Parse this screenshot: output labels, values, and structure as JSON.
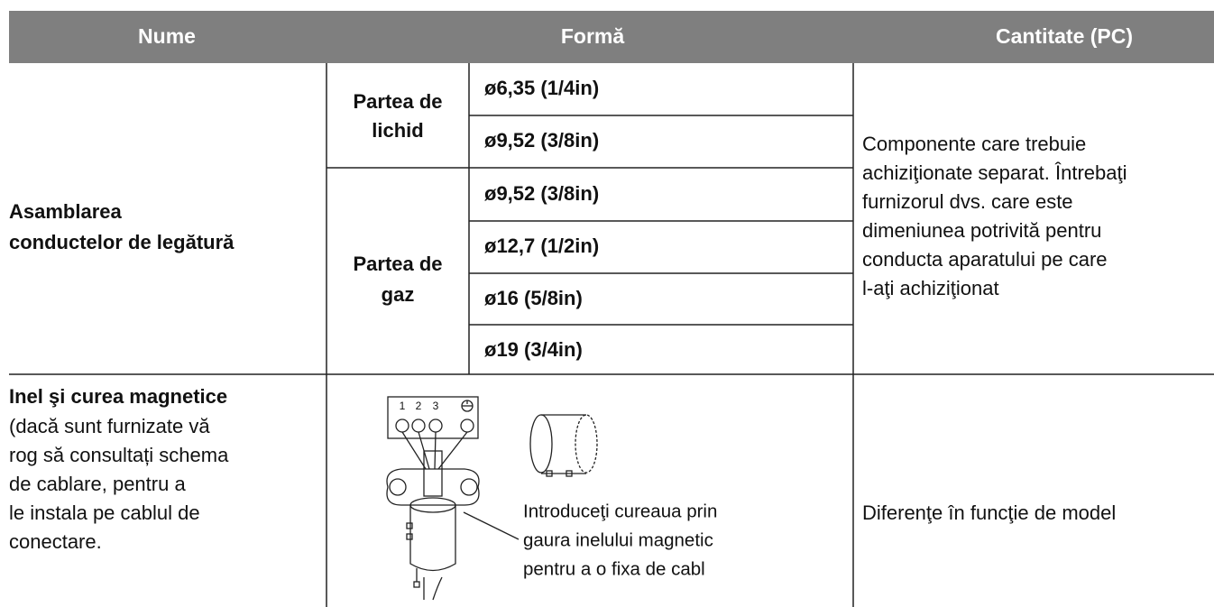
{
  "header": {
    "name": "Nume",
    "shape": "Formă",
    "quantity": "Cantitate (PC)"
  },
  "rows": [
    {
      "name": [
        "Asamblarea",
        "conductelor de legătură"
      ],
      "groups": [
        {
          "label": [
            "Partea de",
            "lichid"
          ],
          "sizes": [
            "ø6,35 (1/4in)",
            "ø9,52 (3/8in)"
          ]
        },
        {
          "label": [
            "Partea de",
            "gaz"
          ],
          "sizes": [
            "ø9,52 (3/8in)",
            "ø12,7 (1/2in)",
            "ø16 (5/8in)",
            "ø19 (3/4in)"
          ]
        }
      ],
      "quantity": [
        "Componente care trebuie",
        "achiziţionate separat. Întrebaţi",
        "furnizorul dvs. care este",
        "dimeniunea potrivită pentru",
        "conducta aparatului pe care",
        "l-aţi achiziţionat"
      ]
    },
    {
      "name_title": "Inel şi curea magnetice",
      "name": [
        "(dacă sunt furnizate vă",
        "rog să consultați schema",
        "de cablare, pentru a",
        "le instala pe cablul de",
        "conectare."
      ],
      "diagram": {
        "terminal_labels": [
          "1",
          "2",
          "3"
        ],
        "caption": [
          "Introduceţi cureaua prin",
          "gaura inelului magnetic",
          "pentru a o fixa de cabl"
        ]
      },
      "quantity": [
        "Diferenţe în funcţie de model"
      ]
    }
  ]
}
